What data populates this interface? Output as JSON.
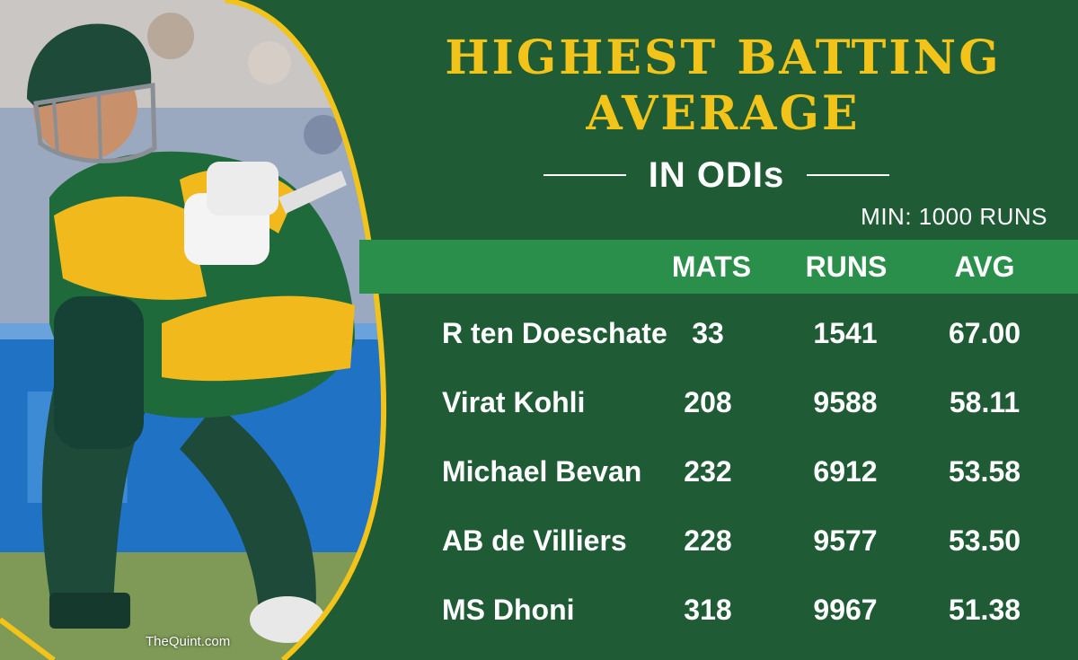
{
  "infographic": {
    "title_line1": "HIGHEST BATTING",
    "title_line2": "AVERAGE",
    "subtitle": "IN ODIs",
    "note": "MIN: 1000 RUNS",
    "credit": "TheQuint.com",
    "colors": {
      "background": "#1f5c36",
      "header_band": "#2b8f4c",
      "title": "#f2c318",
      "text": "#ffffff",
      "border": "#f2c318"
    }
  },
  "table": {
    "headers": [
      "MATS",
      "RUNS",
      "AVG"
    ],
    "rows": [
      {
        "player": "R ten Doeschate",
        "mats": "33",
        "runs": "1541",
        "avg": "67.00"
      },
      {
        "player": "Virat Kohli",
        "mats": "208",
        "runs": "9588",
        "avg": "58.11"
      },
      {
        "player": "Michael Bevan",
        "mats": "232",
        "runs": "6912",
        "avg": "53.58"
      },
      {
        "player": "AB de Villiers",
        "mats": "228",
        "runs": "9577",
        "avg": "53.50"
      },
      {
        "player": "MS Dhoni",
        "mats": "318",
        "runs": "9967",
        "avg": "51.38"
      }
    ]
  }
}
